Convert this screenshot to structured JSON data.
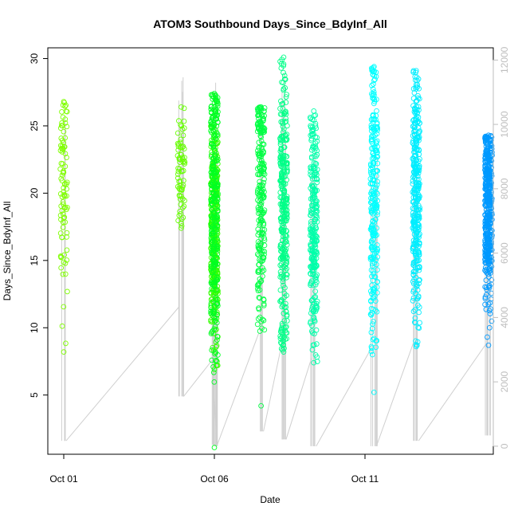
{
  "chart_data": {
    "type": "scatter",
    "title": "ATOM3 Southbound Days_Since_BdyInf_All",
    "xlabel": "Date",
    "ylabel": "Days_Since_BdyInf_All",
    "x_ticks": [
      "Oct 01",
      "Oct 06",
      "Oct 11"
    ],
    "y_ticks": [
      5,
      10,
      15,
      20,
      25,
      30
    ],
    "y_range": [
      0.6,
      30.8
    ],
    "y2_ticks": [
      0,
      2000,
      4000,
      6000,
      8000,
      10000,
      12000
    ],
    "y2_range": [
      -250,
      12380
    ],
    "grid": false,
    "legend": "none",
    "colors": {
      "axis": "#000000",
      "right_axis": "#bebebe",
      "line": "#cfcfcf"
    },
    "series": [
      {
        "date": "Oct 01",
        "color": "#7fff00",
        "y_range": [
          8.2,
          26.8
        ],
        "center": 20.5,
        "n": 90,
        "line": [
          [
            1.6,
            28.6
          ]
        ]
      },
      {
        "date": "Oct 04",
        "color": "#66ff00",
        "y_range": [
          17.4,
          26.4
        ],
        "center": 21.5,
        "n": 70,
        "line": [
          [
            4.9,
            29.8
          ]
        ]
      },
      {
        "date": "Oct 05",
        "color": "#33ff00",
        "y_range": [
          6.9,
          25.1
        ],
        "center": 17,
        "n": 320,
        "line": [
          [
            1.3,
            25.0
          ]
        ]
      },
      {
        "date": "Oct 06",
        "color": "#00ff22",
        "y_range": [
          1.1,
          27.4
        ],
        "center": 19,
        "n": 260,
        "line": [
          [
            1.2,
            29.8
          ]
        ]
      },
      {
        "date": "Oct 07",
        "color": "#00ff44",
        "y_range": [
          4.2,
          26.4
        ],
        "center": 20.5,
        "n": 240,
        "line": [
          [
            2.3,
            26.2
          ]
        ]
      },
      {
        "date": "Oct 08",
        "color": "#00ff88",
        "y_range": [
          8.2,
          30.1
        ],
        "center": 19,
        "n": 320,
        "line": [
          [
            1.7,
            28.9
          ]
        ]
      },
      {
        "date": "Oct 09",
        "color": "#00ffaa",
        "y_range": [
          7.4,
          26.1
        ],
        "center": 17.5,
        "n": 260,
        "line": [
          [
            1.2,
            26.0
          ]
        ]
      },
      {
        "date": "Oct 11",
        "color": "#00ffff",
        "y_range": [
          5.2,
          29.4
        ],
        "center": 19.5,
        "n": 260,
        "line": [
          [
            1.2,
            28.4
          ]
        ]
      },
      {
        "date": "Oct 12",
        "color": "#00eeff",
        "y_range": [
          8.6,
          29.1
        ],
        "center": 20,
        "n": 340,
        "line": [
          [
            1.6,
            28.0
          ]
        ]
      },
      {
        "date": "Oct 15",
        "color": "#0099ff",
        "y_range": [
          8.7,
          24.3
        ],
        "center": 19,
        "n": 440,
        "line": [
          [
            2.0,
            24.0
          ]
        ]
      }
    ]
  }
}
